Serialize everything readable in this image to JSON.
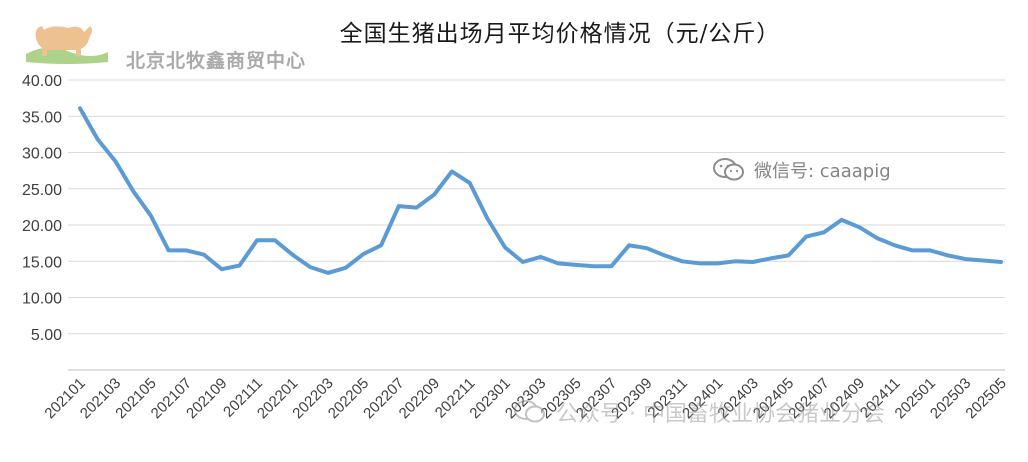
{
  "watermarks": {
    "company": "北京北牧鑫商贸中心",
    "wechat": "微信号: caaapig",
    "official": "公众号 · 中国畜牧业协会猪业分会"
  },
  "colors": {
    "line": "#5b9bd5",
    "grid": "#d9d9d9",
    "axis_text": "#404040",
    "logo": "#e8a862"
  },
  "icons": [
    "bull-logo-icon",
    "wechat-icon"
  ],
  "chart_data": {
    "type": "line",
    "title": "全国生猪出场月平均价格情况（元/公斤）",
    "xlabel": "",
    "ylabel": "",
    "ylim": [
      0,
      40
    ],
    "y_ticks": [
      "5.00",
      "10.00",
      "15.00",
      "20.00",
      "25.00",
      "30.00",
      "35.00",
      "40.00"
    ],
    "grid": "horizontal",
    "legend": "none",
    "x": [
      "202101",
      "202102",
      "202103",
      "202104",
      "202105",
      "202106",
      "202107",
      "202108",
      "202109",
      "202110",
      "202111",
      "202112",
      "202201",
      "202202",
      "202203",
      "202204",
      "202205",
      "202206",
      "202207",
      "202208",
      "202209",
      "202210",
      "202211",
      "202212",
      "202301",
      "202302",
      "202303",
      "202304",
      "202305",
      "202306",
      "202307",
      "202308",
      "202309",
      "202310",
      "202311",
      "202312",
      "202401",
      "202402",
      "202403",
      "202404",
      "202405",
      "202406",
      "202407",
      "202408",
      "202409",
      "202410",
      "202411",
      "202412",
      "202501",
      "202502",
      "202503",
      "202504",
      "202505"
    ],
    "x_tick_labels": [
      "202101",
      "202103",
      "202105",
      "202107",
      "202109",
      "202111",
      "202201",
      "202203",
      "202205",
      "202207",
      "202209",
      "202211",
      "202301",
      "202303",
      "202305",
      "202307",
      "202309",
      "202311",
      "202401",
      "202403",
      "202405",
      "202407",
      "202409",
      "202411",
      "202501",
      "202503",
      "202505"
    ],
    "series": [
      {
        "values": [
          36.1,
          31.8,
          28.8,
          24.7,
          21.3,
          16.5,
          16.5,
          15.9,
          13.9,
          14.4,
          17.9,
          17.9,
          15.9,
          14.2,
          13.4,
          14.1,
          16.0,
          17.2,
          22.6,
          22.4,
          24.2,
          27.4,
          25.8,
          20.9,
          16.9,
          14.9,
          15.6,
          14.7,
          14.5,
          14.3,
          14.3,
          17.2,
          16.8,
          15.8,
          15.0,
          14.7,
          14.7,
          15.0,
          14.9,
          15.4,
          15.8,
          18.4,
          19.0,
          20.7,
          19.7,
          18.2,
          17.2,
          16.5,
          16.5,
          15.8,
          15.3,
          15.1,
          14.9
        ]
      }
    ]
  }
}
